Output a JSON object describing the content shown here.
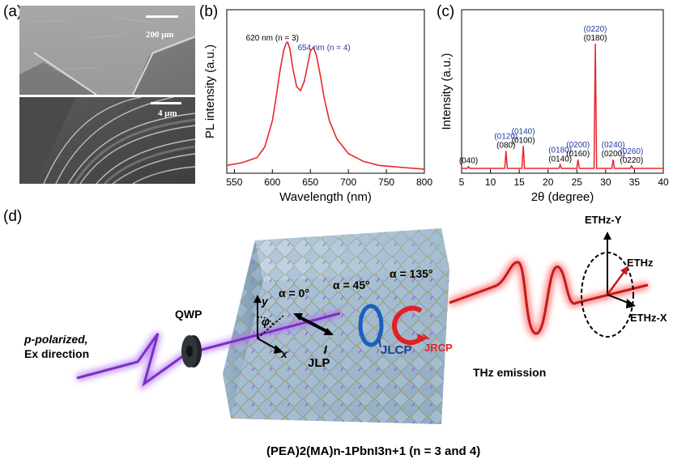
{
  "panels": {
    "a": {
      "letter": "(a)",
      "scalebar_top": "200 μm",
      "scalebar_bottom": "4 μm"
    },
    "b": {
      "letter": "(b)"
    },
    "c": {
      "letter": "(c)"
    },
    "d": {
      "letter": "(d)",
      "labels": {
        "qwp": "QWP",
        "p_polarized": "p-polarized,",
        "ex_direction": "Ex direction",
        "alpha0": "α = 0°",
        "alpha45": "α = 45°",
        "alpha135": "α = 135°",
        "phi": "φ",
        "axis_y": "y",
        "axis_x": "x",
        "jlp": "JLP",
        "jlcp": "JLCP",
        "jrcp": "JRCP",
        "thz_emission": "THz emission",
        "e_thz_y": "ETHz-Y",
        "e_thz": "ETHz",
        "e_thz_x": "ETHz-X",
        "formula": "(PEA)2(MA)n-1PbnI3n+1 (n = 3 and 4)"
      }
    }
  },
  "chart_data": [
    {
      "type": "line",
      "panel": "b",
      "xlabel": "Wavelength (nm)",
      "ylabel": "PL intensity (a.u.)",
      "xlim": [
        540,
        800
      ],
      "xticks": [
        550,
        600,
        650,
        700,
        750,
        800
      ],
      "series": [
        {
          "color": "#e8262a",
          "x": [
            540,
            560,
            580,
            590,
            600,
            605,
            610,
            615,
            618,
            620,
            623,
            627,
            632,
            637,
            642,
            647,
            650,
            654,
            658,
            663,
            668,
            675,
            685,
            700,
            720,
            740,
            760,
            780,
            800
          ],
          "y": [
            0.06,
            0.08,
            0.12,
            0.2,
            0.4,
            0.58,
            0.78,
            0.94,
            0.99,
            1.0,
            0.95,
            0.8,
            0.66,
            0.63,
            0.7,
            0.84,
            0.93,
            0.96,
            0.9,
            0.75,
            0.58,
            0.4,
            0.26,
            0.15,
            0.09,
            0.06,
            0.05,
            0.04,
            0.03
          ]
        }
      ],
      "annotations": [
        {
          "text": "620 nm (n = 3)",
          "color": "#000000"
        },
        {
          "text": "654 nm (n = 4)",
          "color": "#1f3aa8"
        }
      ]
    },
    {
      "type": "line",
      "panel": "c",
      "xlabel": "2θ (degree)",
      "ylabel": "Intensity (a.u.)",
      "xlim": [
        5,
        40
      ],
      "xticks": [
        5,
        10,
        15,
        20,
        25,
        30,
        35,
        40
      ],
      "peaks": [
        {
          "x": 6.2,
          "y": 0.015
        },
        {
          "x": 12.7,
          "y": 0.14
        },
        {
          "x": 15.7,
          "y": 0.18
        },
        {
          "x": 22.1,
          "y": 0.03
        },
        {
          "x": 25.2,
          "y": 0.07
        },
        {
          "x": 28.2,
          "y": 1.0
        },
        {
          "x": 31.3,
          "y": 0.07
        },
        {
          "x": 34.5,
          "y": 0.02
        }
      ],
      "peak_labels": [
        {
          "x": 6.2,
          "blue": "",
          "black": "(040)"
        },
        {
          "x": 12.7,
          "blue": "(0120)",
          "black": "(080)"
        },
        {
          "x": 15.7,
          "blue": "(0140)",
          "black": "(0100)"
        },
        {
          "x": 22.1,
          "blue": "(0180)",
          "black": "(0140)"
        },
        {
          "x": 25.2,
          "blue": "(0200)",
          "black": "(0160)"
        },
        {
          "x": 28.2,
          "blue": "(0220)",
          "black": "(0180)"
        },
        {
          "x": 31.3,
          "blue": "(0240)",
          "black": "(0200)"
        },
        {
          "x": 34.5,
          "blue": "(0260)",
          "black": "(0220)"
        }
      ],
      "colors": {
        "line": "#e8262a",
        "blue_label": "#1f3aa8"
      }
    }
  ]
}
